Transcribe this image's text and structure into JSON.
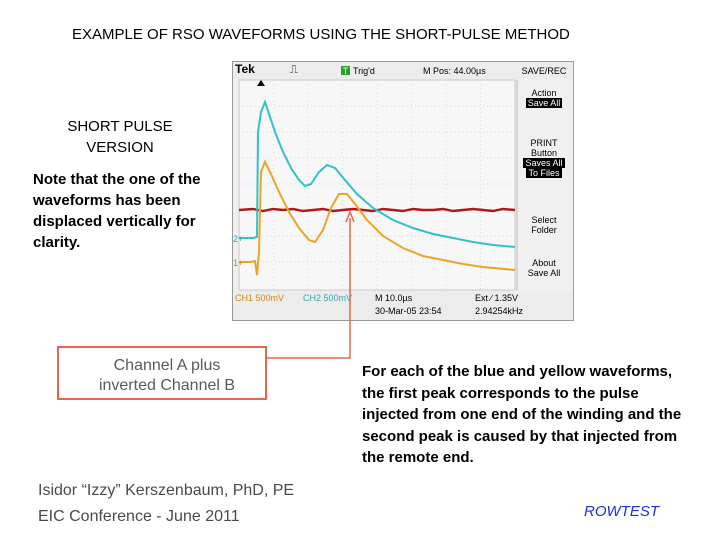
{
  "title": "EXAMPLE OF RSO WAVEFORMS USING THE SHORT-PULSE METHOD",
  "short_pulse": {
    "line1": "SHORT PULSE",
    "line2": "VERSION"
  },
  "note": "Note that the one of the waveforms has been displaced vertically for clarity.",
  "scope": {
    "brand": "Tek",
    "trig_status": "Trig'd",
    "trig_marker": "T",
    "m_pos": "M Pos: 44.00µs",
    "save_rec": "SAVE/REC",
    "menu": {
      "action": "Action",
      "save_all": "Save All",
      "print": "PRINT",
      "button": "Button",
      "saves_all": "Saves All",
      "to_files": "To Files",
      "select": "Select",
      "folder": "Folder",
      "about": "About",
      "save_all_2": "Save All"
    },
    "ch_marker_2": "2+",
    "ch_marker_1": "1+",
    "ch1": "CH1  500mV",
    "ch2": "CH2  500mV",
    "m_time": "M 10.0µs",
    "ext": "Ext  ∕  1.35V",
    "date": "30-Mar-05 23:54",
    "freq": "2.94254kHz",
    "colors": {
      "blue": "#33c0c8",
      "yellow": "#e8a628",
      "red": "#b01818"
    }
  },
  "callout": {
    "line1": "Channel A plus",
    "line2": "inverted Channel B"
  },
  "description": "For each of the blue and yellow waveforms, the first peak corresponds to the pulse injected from one end of the winding and the second peak is caused by that injected from the remote end.",
  "author": "Isidor “Izzy” Kerszenbaum, PhD, PE",
  "conference": "EIC Conference - June 2011",
  "rowtest": "ROWTEST"
}
